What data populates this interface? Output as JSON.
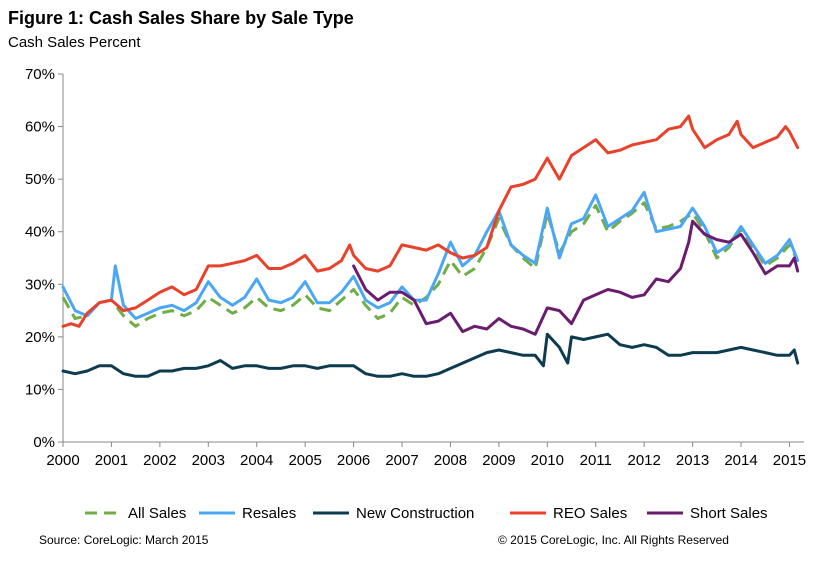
{
  "title": "Figure 1: Cash Sales Share by Sale Type",
  "subtitle": "Cash Sales Percent",
  "source": "Source: CoreLogic: March 2015",
  "copyright": "© 2015 CoreLogic, Inc. All Rights Reserved",
  "chart_data": {
    "type": "line",
    "title": "Figure 1: Cash Sales Share by Sale Type",
    "ylabel": "Cash Sales Percent",
    "xlabel": "",
    "ylim": [
      0,
      70
    ],
    "yticks": [
      "0%",
      "10%",
      "20%",
      "30%",
      "40%",
      "50%",
      "60%",
      "70%"
    ],
    "xticks": [
      "2000",
      "2001",
      "2002",
      "2003",
      "2004",
      "2005",
      "2006",
      "2007",
      "2008",
      "2009",
      "2010",
      "2011",
      "2012",
      "2013",
      "2014",
      "2015"
    ],
    "legend_position": "bottom",
    "grid": false,
    "series": [
      {
        "name": "All Sales",
        "color": "#70ad47",
        "dash": "dashed",
        "x": [
          2000.0,
          2000.25,
          2000.5,
          2000.75,
          2001.0,
          2001.25,
          2001.5,
          2001.75,
          2002.0,
          2002.25,
          2002.5,
          2002.75,
          2003.0,
          2003.25,
          2003.5,
          2003.75,
          2004.0,
          2004.25,
          2004.5,
          2004.75,
          2005.0,
          2005.25,
          2005.5,
          2005.75,
          2006.0,
          2006.25,
          2006.5,
          2006.75,
          2007.0,
          2007.25,
          2007.5,
          2007.75,
          2008.0,
          2008.25,
          2008.5,
          2008.75,
          2009.0,
          2009.25,
          2009.5,
          2009.75,
          2010.0,
          2010.25,
          2010.5,
          2010.75,
          2011.0,
          2011.25,
          2011.5,
          2011.75,
          2012.0,
          2012.25,
          2012.5,
          2012.75,
          2013.0,
          2013.25,
          2013.5,
          2013.75,
          2014.0,
          2014.25,
          2014.5,
          2014.75,
          2015.0,
          2015.17
        ],
        "values": [
          27.5,
          23.5,
          24.0,
          26.5,
          27.0,
          24.0,
          22.0,
          23.5,
          24.5,
          25.0,
          24.0,
          25.0,
          27.5,
          26.0,
          24.5,
          25.5,
          27.5,
          25.5,
          25.0,
          26.0,
          28.0,
          25.5,
          25.0,
          27.0,
          29.0,
          26.0,
          23.5,
          24.5,
          27.5,
          26.0,
          27.5,
          30.0,
          34.5,
          31.5,
          33.0,
          37.0,
          42.5,
          37.5,
          35.0,
          33.0,
          43.5,
          36.0,
          40.0,
          41.5,
          45.0,
          40.0,
          42.0,
          43.5,
          45.5,
          40.5,
          41.0,
          42.0,
          43.5,
          40.0,
          35.0,
          37.0,
          40.5,
          37.0,
          33.5,
          35.0,
          37.5,
          34.5
        ]
      },
      {
        "name": "Resales",
        "color": "#4ba7f5",
        "dash": "solid",
        "x": [
          2000.0,
          2000.25,
          2000.5,
          2000.75,
          2001.0,
          2001.08,
          2001.25,
          2001.5,
          2001.75,
          2002.0,
          2002.25,
          2002.5,
          2002.75,
          2003.0,
          2003.25,
          2003.5,
          2003.75,
          2004.0,
          2004.25,
          2004.5,
          2004.75,
          2005.0,
          2005.25,
          2005.5,
          2005.75,
          2006.0,
          2006.25,
          2006.5,
          2006.75,
          2007.0,
          2007.25,
          2007.5,
          2007.75,
          2008.0,
          2008.25,
          2008.5,
          2008.75,
          2009.0,
          2009.25,
          2009.5,
          2009.75,
          2010.0,
          2010.25,
          2010.5,
          2010.75,
          2011.0,
          2011.25,
          2011.5,
          2011.75,
          2012.0,
          2012.25,
          2012.5,
          2012.75,
          2013.0,
          2013.25,
          2013.5,
          2013.75,
          2014.0,
          2014.25,
          2014.5,
          2014.75,
          2015.0,
          2015.17
        ],
        "values": [
          29.5,
          25.0,
          24.0,
          26.5,
          27.0,
          33.5,
          26.0,
          23.5,
          24.5,
          25.5,
          26.0,
          25.0,
          26.5,
          30.5,
          27.5,
          26.0,
          27.5,
          31.0,
          27.0,
          26.5,
          27.5,
          30.5,
          26.5,
          26.5,
          28.5,
          31.5,
          27.0,
          25.5,
          26.5,
          29.5,
          27.0,
          27.0,
          32.0,
          38.0,
          33.5,
          35.5,
          40.0,
          44.0,
          37.5,
          35.5,
          34.0,
          44.5,
          35.0,
          41.5,
          42.5,
          47.0,
          41.0,
          42.5,
          44.0,
          47.5,
          40.0,
          40.5,
          41.0,
          44.5,
          41.0,
          36.0,
          37.5,
          41.0,
          37.5,
          34.0,
          35.5,
          38.5,
          34.5
        ]
      },
      {
        "name": "New Construction",
        "color": "#0d3b4f",
        "dash": "solid",
        "x": [
          2000.0,
          2000.25,
          2000.5,
          2000.75,
          2001.0,
          2001.25,
          2001.5,
          2001.75,
          2002.0,
          2002.25,
          2002.5,
          2002.75,
          2003.0,
          2003.25,
          2003.5,
          2003.75,
          2004.0,
          2004.25,
          2004.5,
          2004.75,
          2005.0,
          2005.25,
          2005.5,
          2005.75,
          2006.0,
          2006.25,
          2006.5,
          2006.75,
          2007.0,
          2007.25,
          2007.5,
          2007.75,
          2008.0,
          2008.25,
          2008.5,
          2008.75,
          2009.0,
          2009.25,
          2009.5,
          2009.75,
          2009.92,
          2010.0,
          2010.25,
          2010.42,
          2010.5,
          2010.75,
          2011.0,
          2011.25,
          2011.5,
          2011.75,
          2012.0,
          2012.25,
          2012.5,
          2012.75,
          2013.0,
          2013.25,
          2013.5,
          2013.75,
          2014.0,
          2014.25,
          2014.5,
          2014.75,
          2015.0,
          2015.1,
          2015.17
        ],
        "values": [
          13.5,
          13.0,
          13.5,
          14.5,
          14.5,
          13.0,
          12.5,
          12.5,
          13.5,
          13.5,
          14.0,
          14.0,
          14.5,
          15.5,
          14.0,
          14.5,
          14.5,
          14.0,
          14.0,
          14.5,
          14.5,
          14.0,
          14.5,
          14.5,
          14.5,
          13.0,
          12.5,
          12.5,
          13.0,
          12.5,
          12.5,
          13.0,
          14.0,
          15.0,
          16.0,
          17.0,
          17.5,
          17.0,
          16.5,
          16.5,
          14.5,
          20.5,
          18.0,
          15.0,
          20.0,
          19.5,
          20.0,
          20.5,
          18.5,
          18.0,
          18.5,
          18.0,
          16.5,
          16.5,
          17.0,
          17.0,
          17.0,
          17.5,
          18.0,
          17.5,
          17.0,
          16.5,
          16.5,
          17.5,
          15.0
        ]
      },
      {
        "name": "REO Sales",
        "color": "#e8412c",
        "dash": "solid",
        "x": [
          2000.0,
          2000.17,
          2000.33,
          2000.5,
          2000.75,
          2001.0,
          2001.25,
          2001.5,
          2001.75,
          2002.0,
          2002.25,
          2002.5,
          2002.75,
          2003.0,
          2003.25,
          2003.5,
          2003.75,
          2004.0,
          2004.25,
          2004.5,
          2004.75,
          2005.0,
          2005.25,
          2005.5,
          2005.75,
          2005.92,
          2006.0,
          2006.25,
          2006.5,
          2006.75,
          2007.0,
          2007.25,
          2007.5,
          2007.75,
          2008.0,
          2008.25,
          2008.5,
          2008.75,
          2009.0,
          2009.25,
          2009.5,
          2009.75,
          2010.0,
          2010.25,
          2010.5,
          2010.75,
          2011.0,
          2011.25,
          2011.5,
          2011.75,
          2012.0,
          2012.25,
          2012.5,
          2012.75,
          2012.92,
          2013.0,
          2013.25,
          2013.5,
          2013.75,
          2013.92,
          2014.0,
          2014.25,
          2014.5,
          2014.75,
          2014.92,
          2015.0,
          2015.17
        ],
        "values": [
          22.0,
          22.5,
          22.0,
          24.5,
          26.5,
          27.0,
          25.0,
          25.5,
          27.0,
          28.5,
          29.5,
          28.0,
          29.0,
          33.5,
          33.5,
          34.0,
          34.5,
          35.5,
          33.0,
          33.0,
          34.0,
          35.5,
          32.5,
          33.0,
          34.5,
          37.5,
          35.5,
          33.0,
          32.5,
          33.5,
          37.5,
          37.0,
          36.5,
          37.5,
          36.0,
          35.0,
          35.5,
          37.0,
          44.0,
          48.5,
          49.0,
          50.0,
          54.0,
          50.0,
          54.5,
          56.0,
          57.5,
          55.0,
          55.5,
          56.5,
          57.0,
          57.5,
          59.5,
          60.0,
          62.0,
          59.5,
          56.0,
          57.5,
          58.5,
          61.0,
          58.5,
          56.0,
          57.0,
          58.0,
          60.0,
          59.0,
          56.0
        ]
      },
      {
        "name": "Short Sales",
        "color": "#6a1c6e",
        "dash": "solid",
        "x": [
          2006.0,
          2006.25,
          2006.5,
          2006.75,
          2007.0,
          2007.25,
          2007.5,
          2007.75,
          2008.0,
          2008.25,
          2008.5,
          2008.75,
          2009.0,
          2009.25,
          2009.5,
          2009.75,
          2010.0,
          2010.25,
          2010.5,
          2010.75,
          2011.0,
          2011.25,
          2011.5,
          2011.75,
          2012.0,
          2012.25,
          2012.5,
          2012.75,
          2012.92,
          2013.0,
          2013.25,
          2013.5,
          2013.75,
          2014.0,
          2014.25,
          2014.5,
          2014.75,
          2015.0,
          2015.1,
          2015.17
        ],
        "values": [
          33.5,
          29.0,
          27.0,
          28.5,
          28.5,
          27.0,
          22.5,
          23.0,
          24.5,
          21.0,
          22.0,
          21.5,
          23.5,
          22.0,
          21.5,
          20.5,
          25.5,
          25.0,
          22.5,
          27.0,
          28.0,
          29.0,
          28.5,
          27.5,
          28.0,
          31.0,
          30.5,
          33.0,
          38.0,
          42.0,
          39.5,
          38.5,
          38.0,
          39.5,
          36.0,
          32.0,
          33.5,
          33.5,
          35.0,
          32.5
        ]
      }
    ]
  }
}
